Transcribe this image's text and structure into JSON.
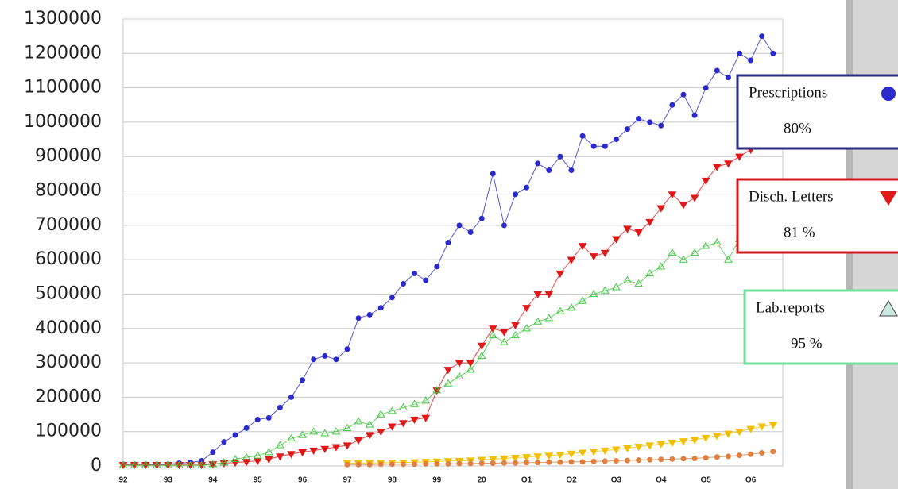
{
  "chart_data": {
    "type": "line",
    "categories": [
      "92",
      null,
      null,
      null,
      "93",
      null,
      null,
      null,
      "94",
      null,
      null,
      null,
      "95",
      null,
      null,
      null,
      "96",
      null,
      null,
      null,
      "97",
      null,
      null,
      null,
      "98",
      null,
      null,
      null,
      "99",
      null,
      null,
      null,
      "20",
      null,
      null,
      null,
      "O1",
      null,
      null,
      null,
      "O2",
      null,
      null,
      null,
      "O3",
      null,
      null,
      null,
      "O4",
      null,
      null,
      null,
      "O5",
      null,
      null,
      null,
      "O6",
      null,
      null
    ],
    "series": [
      {
        "name": "Prescriptions",
        "color": "#2a2acc",
        "marker": "circle",
        "annotation": "80%",
        "values": [
          5000,
          5000,
          5000,
          5000,
          5000,
          8000,
          10000,
          15000,
          40000,
          70000,
          90000,
          110000,
          135000,
          140000,
          170000,
          200000,
          250000,
          310000,
          320000,
          310000,
          340000,
          430000,
          440000,
          460000,
          490000,
          530000,
          560000,
          540000,
          580000,
          650000,
          700000,
          680000,
          720000,
          850000,
          700000,
          790000,
          810000,
          880000,
          860000,
          900000,
          860000,
          960000,
          930000,
          930000,
          950000,
          980000,
          1010000,
          1000000,
          990000,
          1050000,
          1080000,
          1020000,
          1100000,
          1150000,
          1130000,
          1200000,
          1180000,
          1250000,
          1200000
        ]
      },
      {
        "name": "Disch. Letters",
        "color": "#e01818",
        "marker": "triangle-down",
        "annotation": "81 %",
        "values": [
          3000,
          3000,
          3000,
          3000,
          3000,
          3000,
          3000,
          3000,
          5000,
          8000,
          10000,
          12000,
          15000,
          20000,
          28000,
          35000,
          40000,
          45000,
          50000,
          55000,
          60000,
          75000,
          90000,
          100000,
          115000,
          125000,
          135000,
          140000,
          220000,
          280000,
          300000,
          300000,
          350000,
          400000,
          390000,
          410000,
          460000,
          500000,
          500000,
          560000,
          600000,
          640000,
          610000,
          620000,
          660000,
          690000,
          680000,
          710000,
          750000,
          790000,
          760000,
          780000,
          830000,
          870000,
          880000,
          900000,
          920000,
          950000,
          970000
        ]
      },
      {
        "name": "Lab.reports",
        "color": "#40c840",
        "marker": "triangle-up",
        "annotation": "95 %",
        "values": [
          2000,
          2000,
          2000,
          2000,
          2000,
          2000,
          2000,
          2000,
          5000,
          10000,
          20000,
          25000,
          30000,
          40000,
          60000,
          80000,
          90000,
          100000,
          95000,
          100000,
          110000,
          130000,
          120000,
          150000,
          160000,
          170000,
          180000,
          190000,
          220000,
          240000,
          260000,
          280000,
          320000,
          380000,
          360000,
          380000,
          400000,
          420000,
          430000,
          450000,
          460000,
          480000,
          500000,
          510000,
          520000,
          540000,
          530000,
          560000,
          580000,
          620000,
          600000,
          620000,
          640000,
          650000,
          600000,
          660000,
          680000,
          700000,
          650000
        ]
      },
      {
        "color": "#f0c000",
        "marker": "triangle-down",
        "values": [
          null,
          null,
          null,
          null,
          null,
          null,
          null,
          null,
          null,
          null,
          null,
          null,
          null,
          null,
          null,
          null,
          null,
          null,
          null,
          null,
          8000,
          8000,
          9000,
          9000,
          10000,
          10000,
          11000,
          12000,
          13000,
          14000,
          15000,
          16000,
          18000,
          20000,
          22000,
          24000,
          26000,
          28000,
          30000,
          33000,
          36000,
          39000,
          42000,
          45000,
          48000,
          52000,
          56000,
          60000,
          64000,
          68000,
          72000,
          76000,
          82000,
          88000,
          94000,
          100000,
          108000,
          115000,
          120000
        ]
      },
      {
        "color": "#e08040",
        "marker": "circle",
        "values": [
          null,
          null,
          null,
          null,
          null,
          null,
          null,
          null,
          null,
          null,
          null,
          null,
          null,
          null,
          null,
          null,
          null,
          null,
          null,
          null,
          4000,
          4000,
          4000,
          5000,
          5000,
          5000,
          5000,
          6000,
          6000,
          6000,
          7000,
          7000,
          8000,
          8000,
          9000,
          9000,
          10000,
          10000,
          11000,
          11000,
          12000,
          12000,
          13000,
          14000,
          15000,
          16000,
          17000,
          18000,
          19000,
          20000,
          21000,
          22000,
          24000,
          26000,
          28000,
          31000,
          34000,
          38000,
          42000
        ]
      }
    ],
    "ylim": [
      0,
      1300000
    ],
    "yticks": [
      0,
      100000,
      200000,
      300000,
      400000,
      500000,
      600000,
      700000,
      800000,
      900000,
      1000000,
      1100000,
      1200000,
      1300000
    ],
    "grid": true
  }
}
